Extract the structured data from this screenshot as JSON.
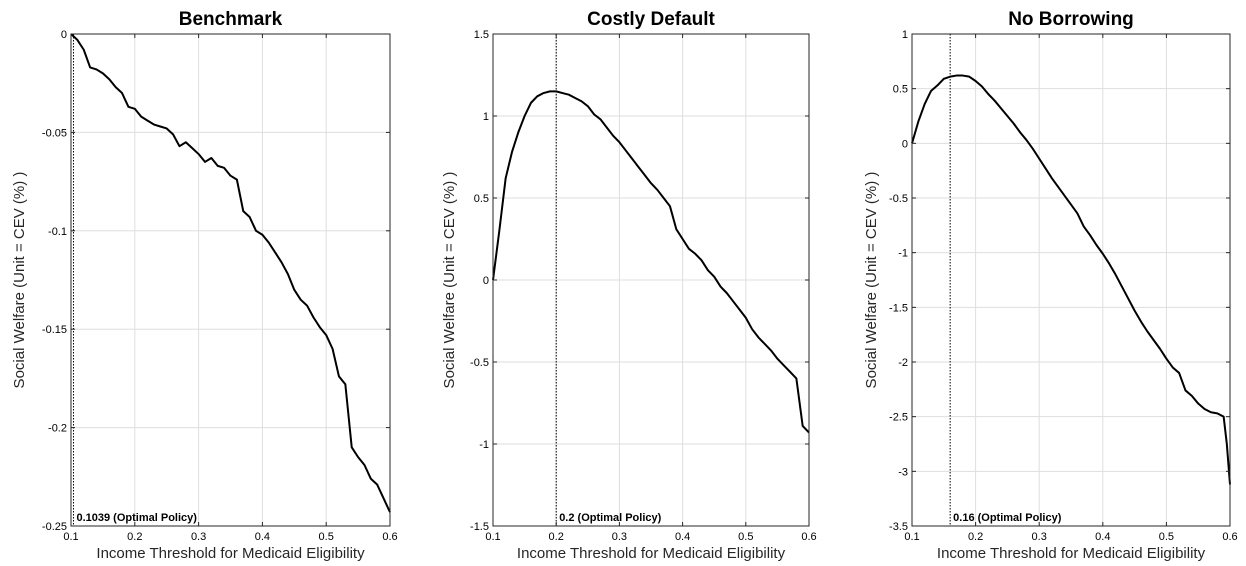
{
  "chart_data": [
    {
      "type": "line",
      "title": "Benchmark",
      "xlabel": "Income Threshold for Medicaid Eligibility",
      "ylabel": "Social Welfare (Unit = CEV (%) )",
      "xlim": [
        0.1,
        0.6
      ],
      "ylim": [
        -0.25,
        0
      ],
      "xticks": [
        0.1,
        0.2,
        0.3,
        0.4,
        0.5,
        0.6
      ],
      "xtick_labels": [
        "0.1",
        "0.2",
        "0.3",
        "0.4",
        "0.5",
        "0.6"
      ],
      "yticks": [
        -0.25,
        -0.2,
        -0.15,
        -0.1,
        -0.05,
        0
      ],
      "ytick_labels": [
        "-0.25",
        "-0.2",
        "-0.15",
        "-0.1",
        "-0.05",
        "0"
      ],
      "grid": true,
      "optimal_x": 0.1039,
      "annotation": "0.1039 (Optimal Policy)",
      "series": [
        {
          "x": [
            0.1,
            0.11,
            0.12,
            0.13,
            0.14,
            0.15,
            0.16,
            0.17,
            0.18,
            0.19,
            0.2,
            0.21,
            0.22,
            0.23,
            0.24,
            0.25,
            0.26,
            0.27,
            0.28,
            0.29,
            0.3,
            0.31,
            0.32,
            0.33,
            0.34,
            0.35,
            0.36,
            0.37,
            0.38,
            0.39,
            0.4,
            0.41,
            0.42,
            0.43,
            0.44,
            0.45,
            0.46,
            0.47,
            0.48,
            0.49,
            0.5,
            0.51,
            0.52,
            0.53,
            0.54,
            0.55,
            0.56,
            0.57,
            0.58,
            0.59,
            0.6
          ],
          "values": [
            0,
            -0.003,
            -0.008,
            -0.017,
            -0.018,
            -0.02,
            -0.023,
            -0.027,
            -0.03,
            -0.037,
            -0.038,
            -0.042,
            -0.044,
            -0.046,
            -0.047,
            -0.048,
            -0.051,
            -0.057,
            -0.055,
            -0.058,
            -0.061,
            -0.065,
            -0.063,
            -0.067,
            -0.068,
            -0.072,
            -0.074,
            -0.09,
            -0.093,
            -0.1,
            -0.102,
            -0.106,
            -0.111,
            -0.116,
            -0.122,
            -0.13,
            -0.135,
            -0.138,
            -0.144,
            -0.149,
            -0.153,
            -0.16,
            -0.174,
            -0.178,
            -0.21,
            -0.215,
            -0.219,
            -0.226,
            -0.229,
            -0.236,
            -0.243
          ]
        }
      ]
    },
    {
      "type": "line",
      "title": "Costly Default",
      "xlabel": "Income Threshold for Medicaid Eligibility",
      "ylabel": "Social Welfare (Unit = CEV (%) )",
      "xlim": [
        0.1,
        0.6
      ],
      "ylim": [
        -1.5,
        1.5
      ],
      "xticks": [
        0.1,
        0.2,
        0.3,
        0.4,
        0.5,
        0.6
      ],
      "xtick_labels": [
        "0.1",
        "0.2",
        "0.3",
        "0.4",
        "0.5",
        "0.6"
      ],
      "yticks": [
        -1.5,
        -1,
        -0.5,
        0,
        0.5,
        1,
        1.5
      ],
      "ytick_labels": [
        "-1.5",
        "-1",
        "-0.5",
        "0",
        "0.5",
        "1",
        "1.5"
      ],
      "grid": true,
      "optimal_x": 0.2,
      "annotation": "0.2 (Optimal Policy)",
      "series": [
        {
          "x": [
            0.1,
            0.11,
            0.12,
            0.13,
            0.14,
            0.15,
            0.16,
            0.17,
            0.18,
            0.19,
            0.2,
            0.21,
            0.22,
            0.23,
            0.24,
            0.25,
            0.26,
            0.27,
            0.28,
            0.29,
            0.3,
            0.31,
            0.32,
            0.33,
            0.34,
            0.35,
            0.36,
            0.37,
            0.38,
            0.39,
            0.4,
            0.41,
            0.42,
            0.43,
            0.44,
            0.45,
            0.46,
            0.47,
            0.48,
            0.49,
            0.5,
            0.51,
            0.52,
            0.53,
            0.54,
            0.55,
            0.56,
            0.57,
            0.58,
            0.59,
            0.6
          ],
          "values": [
            0,
            0.3,
            0.62,
            0.78,
            0.9,
            1.0,
            1.08,
            1.12,
            1.14,
            1.15,
            1.15,
            1.14,
            1.13,
            1.11,
            1.09,
            1.06,
            1.01,
            0.98,
            0.93,
            0.88,
            0.84,
            0.79,
            0.74,
            0.69,
            0.64,
            0.59,
            0.55,
            0.5,
            0.45,
            0.31,
            0.25,
            0.19,
            0.16,
            0.12,
            0.06,
            0.02,
            -0.04,
            -0.08,
            -0.13,
            -0.18,
            -0.23,
            -0.3,
            -0.35,
            -0.39,
            -0.43,
            -0.48,
            -0.52,
            -0.56,
            -0.6,
            -0.89,
            -0.93
          ]
        }
      ]
    },
    {
      "type": "line",
      "title": "No Borrowing",
      "xlabel": "Income Threshold for Medicaid Eligibility",
      "ylabel": "Social Welfare (Unit = CEV (%) )",
      "xlim": [
        0.1,
        0.6
      ],
      "ylim": [
        -3.5,
        1
      ],
      "xticks": [
        0.1,
        0.2,
        0.3,
        0.4,
        0.5,
        0.6
      ],
      "xtick_labels": [
        "0.1",
        "0.2",
        "0.3",
        "0.4",
        "0.5",
        "0.6"
      ],
      "yticks": [
        -3.5,
        -3,
        -2.5,
        -2,
        -1.5,
        -1,
        -0.5,
        0,
        0.5,
        1
      ],
      "ytick_labels": [
        "-3.5",
        "-3",
        "-2.5",
        "-2",
        "-1.5",
        "-1",
        "-0.5",
        "0",
        "0.5",
        "1"
      ],
      "grid": true,
      "optimal_x": 0.16,
      "annotation": "0.16 (Optimal Policy)",
      "series": [
        {
          "x": [
            0.1,
            0.11,
            0.12,
            0.13,
            0.14,
            0.15,
            0.16,
            0.17,
            0.18,
            0.19,
            0.2,
            0.21,
            0.22,
            0.23,
            0.24,
            0.25,
            0.26,
            0.27,
            0.28,
            0.29,
            0.3,
            0.31,
            0.32,
            0.33,
            0.34,
            0.35,
            0.36,
            0.37,
            0.38,
            0.39,
            0.4,
            0.41,
            0.42,
            0.43,
            0.44,
            0.45,
            0.46,
            0.47,
            0.48,
            0.49,
            0.5,
            0.51,
            0.52,
            0.53,
            0.54,
            0.55,
            0.56,
            0.57,
            0.58,
            0.59,
            0.595,
            0.6
          ],
          "values": [
            0,
            0.2,
            0.36,
            0.48,
            0.53,
            0.59,
            0.61,
            0.62,
            0.62,
            0.61,
            0.57,
            0.52,
            0.45,
            0.39,
            0.32,
            0.25,
            0.18,
            0.1,
            0.03,
            -0.05,
            -0.14,
            -0.23,
            -0.32,
            -0.4,
            -0.48,
            -0.56,
            -0.64,
            -0.76,
            -0.84,
            -0.93,
            -1.01,
            -1.1,
            -1.2,
            -1.31,
            -1.42,
            -1.53,
            -1.63,
            -1.72,
            -1.8,
            -1.88,
            -1.97,
            -2.05,
            -2.1,
            -2.26,
            -2.31,
            -2.38,
            -2.43,
            -2.46,
            -2.47,
            -2.5,
            -2.75,
            -3.12
          ]
        }
      ]
    }
  ]
}
